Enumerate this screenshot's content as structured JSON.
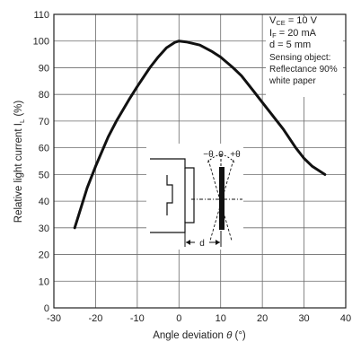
{
  "chart_data": {
    "type": "line",
    "xlabel_text": "Angle deviation ",
    "xlabel_symbol": "θ",
    "xlabel_unit": " (°)",
    "ylabel_text": "Relative light current I",
    "ylabel_sub": "L",
    "ylabel_unit": " (%)",
    "xlim": [
      -30,
      40
    ],
    "ylim": [
      0,
      110
    ],
    "xticks": [
      "-30",
      "-20",
      "-10",
      "0",
      "10",
      "20",
      "30",
      "40"
    ],
    "yticks": [
      "0",
      "10",
      "20",
      "30",
      "40",
      "50",
      "60",
      "70",
      "80",
      "90",
      "100",
      "110"
    ],
    "grid": true,
    "series": [
      {
        "x": [
          -25,
          -22,
          -20,
          -17,
          -15,
          -12,
          -10,
          -7,
          -5,
          -3,
          -1,
          0,
          2,
          5,
          8,
          10,
          13,
          15,
          18,
          20,
          23,
          25,
          28,
          30,
          32,
          35
        ],
        "y": [
          30,
          45,
          53,
          64,
          70,
          78,
          83,
          90,
          94,
          97.5,
          99.5,
          100,
          99.6,
          98.5,
          96,
          94,
          90,
          87,
          81,
          77,
          71,
          67,
          60,
          56,
          53,
          50
        ]
      }
    ],
    "conditions": [
      {
        "main": "V",
        "sub": "CE",
        "rest": " = 10 V"
      },
      {
        "main": "I",
        "sub": "F",
        "rest": " = 20 mA"
      },
      {
        "main": "d = 5 mm",
        "sub": "",
        "rest": ""
      },
      {
        "main": "Sensing object:",
        "sub": "",
        "rest": ""
      },
      {
        "main": "Reflectance 90%",
        "sub": "",
        "rest": ""
      },
      {
        "main": "white paper",
        "sub": "",
        "rest": ""
      }
    ],
    "inset": {
      "minus_theta": "−θ",
      "zero": "0",
      "plus_theta": "+θ",
      "d": "d"
    }
  }
}
